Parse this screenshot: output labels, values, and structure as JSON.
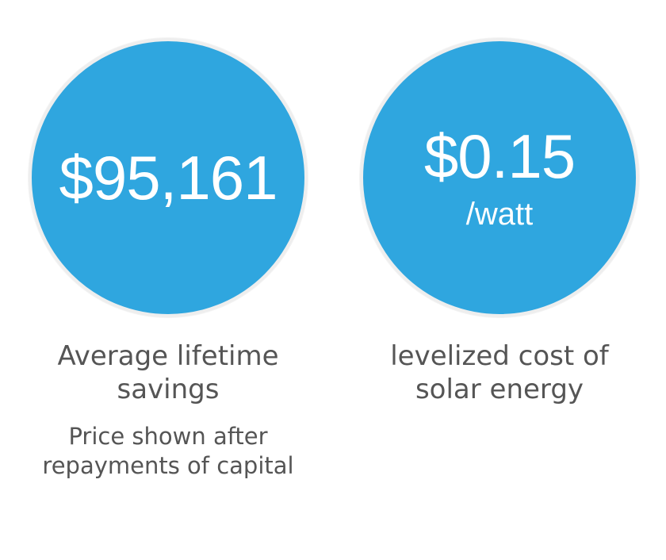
{
  "colors": {
    "accent": "#2fa6df",
    "text": "#555555"
  },
  "stats": [
    {
      "value": "$95,161",
      "unit": "",
      "caption": "Average lifetime savings",
      "note": "Price shown after repayments of capital"
    },
    {
      "value": "$0.15",
      "unit": "/watt",
      "caption": "levelized cost of solar energy",
      "note": ""
    }
  ]
}
